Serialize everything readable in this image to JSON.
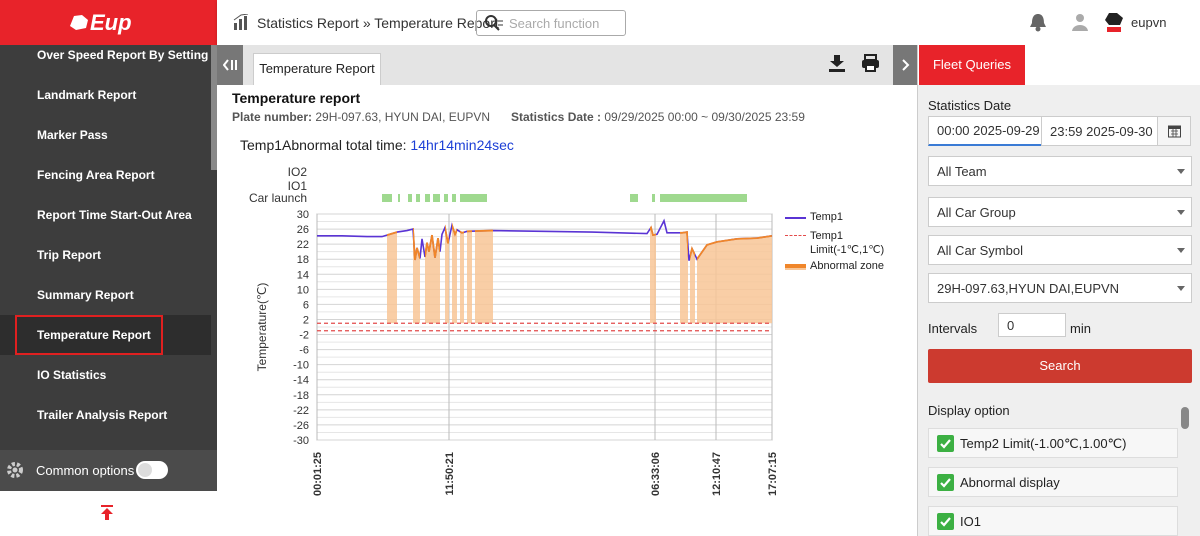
{
  "sidebar": {
    "logo": "Eup",
    "menu": [
      "Over Speed Report By Setting",
      "Landmark Report",
      "Marker Pass",
      "Fencing Area Report",
      "Report Time Start-Out Area",
      "Trip Report",
      "Summary Report",
      "Temperature Report",
      "IO Statistics",
      "Trailer Analysis Report"
    ],
    "active_index": 7,
    "common_options": "Common options"
  },
  "header": {
    "breadcrumb": [
      "Statistics Report",
      "Temperature Report"
    ],
    "separator": "»",
    "search_placeholder": "Search function",
    "user": "eupvn"
  },
  "tab": "Temperature Report",
  "report": {
    "title": "Temperature report",
    "plate_label": "Plate number:",
    "plate": "29H-097.63, HYUN DAI, EUPVN",
    "date_label": "Statistics Date :",
    "date": "09/29/2025 00:00 ~ 09/30/2025 23:59",
    "abnormal_label": "Temp1Abnormal total time:",
    "abnormal_time": "14hr14min24sec"
  },
  "chart_data": {
    "type": "line",
    "ylabel": "Temperature(℃)",
    "ylim": [
      -30,
      30
    ],
    "yticks": [
      30,
      26,
      22,
      18,
      14,
      10,
      6,
      2,
      -2,
      -6,
      -10,
      -14,
      -18,
      -22,
      -26,
      -30
    ],
    "xlim": [
      0,
      91
    ],
    "xticks": [
      {
        "value": 0,
        "label": "00:01:25"
      },
      {
        "value": 26.4,
        "label": "11:50:21"
      },
      {
        "value": 67.6,
        "label": "06:33:06"
      },
      {
        "value": 79.8,
        "label": "12:10:47"
      },
      {
        "value": 91,
        "label": "17:07:15"
      }
    ],
    "grid": true,
    "minor_grid": true,
    "series": [
      {
        "name": "Temp1",
        "color": "#5a34d4",
        "x": [
          0,
          5,
          10,
          13,
          14,
          16,
          18,
          19.2,
          19.6,
          20,
          20.6,
          21,
          21.6,
          22,
          22.4,
          23,
          23.6,
          24.2,
          24.6,
          25,
          25.6,
          26.2,
          27,
          27.6,
          28,
          29,
          30,
          35,
          45,
          55,
          66,
          66.8,
          67.2,
          68,
          69.4,
          70,
          73,
          74,
          74.4,
          75,
          76,
          78,
          80,
          84,
          88,
          91
        ],
        "values": [
          24.2,
          24.2,
          24.0,
          24.0,
          24.4,
          25.2,
          25.6,
          26.0,
          17.8,
          21,
          18.2,
          23.4,
          18.6,
          22.4,
          20,
          24.4,
          18.4,
          23.6,
          20,
          24.6,
          26.4,
          22.2,
          27,
          24.6,
          25.8,
          25,
          25.4,
          25.6,
          25.4,
          25.2,
          24.8,
          26.4,
          24.4,
          24.6,
          28.2,
          25,
          25,
          25.2,
          17.6,
          20.8,
          18,
          21.8,
          22.6,
          23.4,
          23.6,
          24.2
        ]
      }
    ],
    "limits": {
      "name": "Temp1 Limit(-1℃,1℃)",
      "color": "#e34b4b",
      "values": [
        -1,
        1
      ]
    },
    "abnormal": {
      "name": "Abnormal zone",
      "color": "#f0862a",
      "fill": "#f8c697",
      "zones": [
        [
          14,
          16
        ],
        [
          19.2,
          20.6
        ],
        [
          21.6,
          24.6
        ],
        [
          25.6,
          26.4
        ],
        [
          27,
          28
        ],
        [
          28.6,
          29.4
        ],
        [
          30,
          31
        ],
        [
          31.6,
          35.2
        ],
        [
          66.6,
          67.8
        ],
        [
          72.6,
          74.2
        ],
        [
          74.6,
          75.6
        ],
        [
          76,
          91
        ]
      ]
    },
    "io_rows": [
      "IO2",
      "IO1",
      "Car launch"
    ],
    "car_launch": {
      "color": "#9fd98f",
      "ranges": [
        [
          13,
          15
        ],
        [
          16.2,
          16.6
        ],
        [
          18.2,
          19
        ],
        [
          19.8,
          20.6
        ],
        [
          21.6,
          22.6
        ],
        [
          23.2,
          24.6
        ],
        [
          25.4,
          26.2
        ],
        [
          27,
          27.8
        ],
        [
          28.6,
          34
        ],
        [
          62.6,
          64.2
        ],
        [
          67,
          67.6
        ],
        [
          68.6,
          86
        ]
      ]
    }
  },
  "fleet_queries": {
    "tab": "Fleet Queries",
    "date_label": "Statistics Date",
    "start": "00:00 2025-09-29",
    "end": "23:59 2025-09-30",
    "selects": [
      "All Team",
      "All Car Group",
      "All Car Symbol",
      "29H-097.63,HYUN DAI,EUPVN"
    ],
    "intervals_label": "Intervals",
    "intervals": 0,
    "intervals_unit": "min",
    "search": "Search",
    "display_label": "Display option",
    "options": [
      {
        "label": "Temp2 Limit(-1.00℃,1.00℃)",
        "checked": true
      },
      {
        "label": "Abnormal display",
        "checked": true
      },
      {
        "label": "IO1",
        "checked": true
      }
    ]
  }
}
